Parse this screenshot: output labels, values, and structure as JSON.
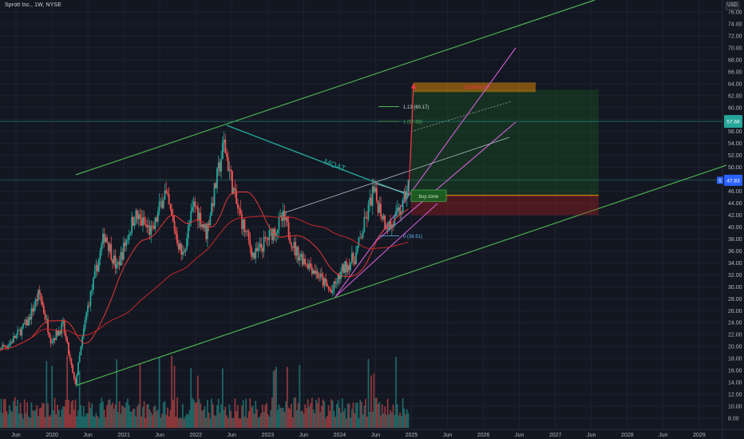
{
  "header": {
    "title": "Sprott Inc., 1W, NYSE"
  },
  "currency_label": "USD",
  "colors": {
    "background": "#131722",
    "grid": "#1e2230",
    "up": "#26a69a",
    "down": "#ef5350",
    "channel": "#4caf50",
    "moat_line": "#26a69a",
    "ma_short": "#e53935",
    "ma_long": "#c62828",
    "fork": "#d15fd6",
    "arrow": "#f23645",
    "target_box": "#ff9800",
    "profit_zone": "#1b5e20",
    "loss_zone": "#b71c1c"
  },
  "annotations": {
    "moat": "MOAT",
    "fib_1_13": "1.13 (60.17)",
    "fib_1": "1 (57.68)",
    "fib_0": "0 (38.51)",
    "buy_zone": "buy zone",
    "target": "DOMINOW"
  },
  "price_badges": {
    "upper": "57.68",
    "current": "47.83",
    "current_tag": "S"
  },
  "chart_data": {
    "type": "candlestick",
    "title": "Sprott Inc., 1W, NYSE",
    "y_axis": {
      "ticks": [
        "76.00",
        "74.00",
        "72.00",
        "70.00",
        "68.00",
        "66.00",
        "64.00",
        "62.00",
        "60.00",
        "58.00",
        "56.00",
        "54.00",
        "52.00",
        "50.00",
        "48.00",
        "46.00",
        "44.00",
        "42.00",
        "40.00",
        "38.00",
        "36.00",
        "34.00",
        "32.00",
        "30.00",
        "28.00",
        "26.00",
        "24.00",
        "22.00",
        "20.00",
        "18.00",
        "16.00",
        "14.00",
        "12.00",
        "10.00",
        "8.00"
      ],
      "range": [
        7,
        77
      ],
      "unit": "USD"
    },
    "x_axis": {
      "labels": [
        "Jun",
        "2020",
        "Jun",
        "2021",
        "Jun",
        "2022",
        "Jun",
        "2023",
        "Jun",
        "2024",
        "Jun",
        "2025",
        "Jun",
        "2026",
        "Jun",
        "2027",
        "Jun",
        "2028",
        "Jun",
        "2029"
      ],
      "range": [
        "2019-03",
        "2029-04"
      ]
    },
    "key_levels": {
      "fib_1_13": 60.17,
      "fib_1": 57.68,
      "fib_0": 38.51,
      "last_price": 47.83
    },
    "price_anchors": [
      [
        "2019-01",
        19.0
      ],
      [
        "2019-04",
        20.5
      ],
      [
        "2019-07",
        24.0
      ],
      [
        "2019-09",
        29.0
      ],
      [
        "2019-11",
        21.0
      ],
      [
        "2020-01",
        23.5
      ],
      [
        "2020-03",
        13.5
      ],
      [
        "2020-05",
        26.0
      ],
      [
        "2020-08",
        39.0
      ],
      [
        "2020-10",
        33.0
      ],
      [
        "2021-01",
        42.0
      ],
      [
        "2021-04",
        39.0
      ],
      [
        "2021-06",
        46.0
      ],
      [
        "2021-09",
        35.0
      ],
      [
        "2021-11",
        44.0
      ],
      [
        "2022-01",
        39.0
      ],
      [
        "2022-04",
        54.0
      ],
      [
        "2022-06",
        44.0
      ],
      [
        "2022-09",
        35.0
      ],
      [
        "2022-12",
        39.0
      ],
      [
        "2023-02",
        41.5
      ],
      [
        "2023-04",
        36.0
      ],
      [
        "2023-07",
        33.0
      ],
      [
        "2023-10",
        29.0
      ],
      [
        "2023-12",
        33.0
      ],
      [
        "2024-02",
        35.0
      ],
      [
        "2024-04",
        42.0
      ],
      [
        "2024-05",
        46.0
      ],
      [
        "2024-07",
        41.0
      ],
      [
        "2024-08",
        40.0
      ],
      [
        "2024-10",
        43.5
      ],
      [
        "2024-11",
        47.83
      ]
    ]
  }
}
